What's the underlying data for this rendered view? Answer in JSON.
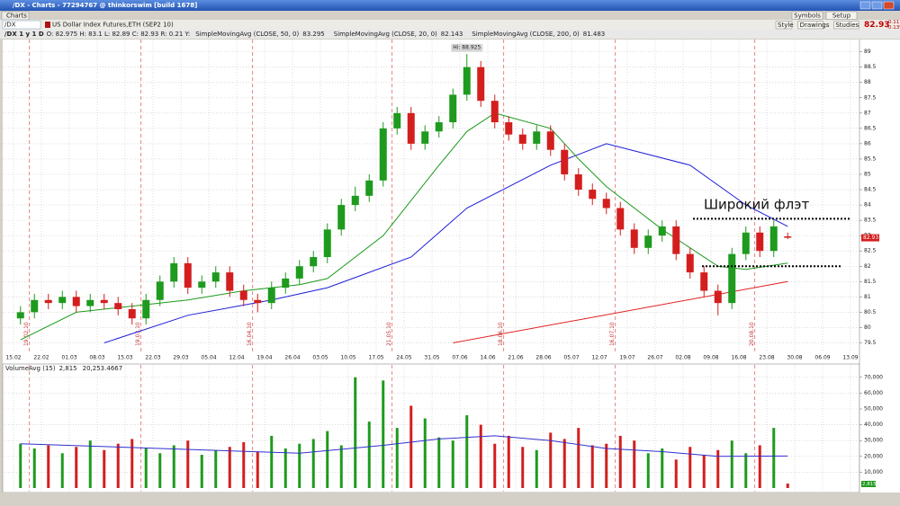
{
  "window": {
    "title": "/DX - Charts - 77294767 @ thinkorswim [build 1678]"
  },
  "tab": "Charts",
  "toolbar": {
    "symbol": "/DX",
    "description": "US Dollar Index Futures,ETH (SEP2 10)",
    "buttons": [
      "Symbols",
      "Setup"
    ],
    "tools": [
      "Style",
      "Drawings",
      "Studies"
    ],
    "last": "82.93",
    "change": "-0.11",
    "change_pct": "-0.13%"
  },
  "study_header": {
    "period": "/DX 1 y 1 D",
    "ohlc": "O: 82.975  H: 83.1  L: 82.89  C: 82.93  R: 0.21  Y:"
  },
  "chart_data": [
    {
      "type": "candlestick",
      "x_labels": [
        "15.02",
        "22.02",
        "01.03",
        "08.03",
        "15.03",
        "22.03",
        "29.03",
        "05.04",
        "12.04",
        "19.04",
        "26.04",
        "03.05",
        "10.05",
        "17.05",
        "24.05",
        "31.05",
        "07.06",
        "14.06",
        "21.06",
        "28.06",
        "05.07",
        "12.07",
        "19.07",
        "26.07",
        "02.08",
        "09.08",
        "16.08",
        "23.08",
        "30.08",
        "06.09",
        "13.09"
      ],
      "open": [
        80.3,
        80.5,
        80.9,
        80.8,
        81.0,
        80.7,
        80.9,
        80.8,
        80.6,
        80.3,
        80.9,
        81.5,
        82.1,
        81.3,
        81.5,
        81.8,
        81.2,
        80.9,
        80.8,
        81.3,
        81.6,
        82.0,
        82.3,
        83.2,
        84.0,
        84.3,
        84.8,
        86.5,
        87.0,
        86.0,
        86.4,
        86.7,
        87.6,
        88.5,
        87.4,
        86.7,
        86.3,
        86.0,
        86.4,
        85.8,
        85.0,
        84.5,
        84.2,
        83.9,
        83.2,
        82.6,
        83.0,
        83.3,
        82.4,
        81.8,
        81.2,
        80.8,
        82.4,
        83.1,
        82.5,
        82.975
      ],
      "high": [
        80.7,
        81.1,
        81.1,
        81.2,
        81.2,
        81.1,
        81.1,
        81.0,
        80.8,
        81.1,
        81.7,
        82.3,
        82.3,
        81.7,
        82.0,
        82.0,
        81.4,
        81.1,
        81.5,
        81.8,
        82.2,
        82.5,
        83.4,
        84.2,
        84.6,
        85.0,
        86.7,
        87.2,
        87.2,
        86.6,
        86.9,
        87.8,
        88.925,
        88.7,
        87.6,
        86.9,
        86.5,
        86.6,
        86.6,
        86.0,
        85.2,
        84.7,
        84.4,
        84.1,
        83.4,
        83.2,
        83.5,
        83.5,
        82.6,
        82.0,
        81.4,
        82.6,
        83.3,
        83.3,
        83.5,
        83.1
      ],
      "low": [
        80.1,
        80.3,
        80.6,
        80.6,
        80.5,
        80.5,
        80.6,
        80.4,
        80.1,
        80.1,
        80.7,
        81.3,
        81.1,
        81.1,
        81.3,
        81.0,
        80.7,
        80.5,
        80.6,
        81.1,
        81.4,
        81.8,
        82.1,
        83.0,
        83.8,
        84.1,
        84.6,
        86.3,
        85.8,
        85.8,
        86.2,
        86.5,
        87.4,
        87.2,
        86.5,
        86.1,
        85.8,
        85.8,
        85.6,
        84.8,
        84.3,
        84.0,
        83.7,
        83.0,
        82.4,
        82.4,
        82.8,
        82.2,
        81.6,
        81.0,
        80.4,
        80.6,
        82.2,
        82.3,
        82.3,
        82.89
      ],
      "close": [
        80.5,
        80.9,
        80.8,
        81.0,
        80.7,
        80.9,
        80.8,
        80.6,
        80.3,
        80.9,
        81.5,
        82.1,
        81.3,
        81.5,
        81.8,
        81.2,
        80.9,
        80.8,
        81.3,
        81.6,
        82.0,
        82.3,
        83.2,
        84.0,
        84.3,
        84.8,
        86.5,
        87.0,
        86.0,
        86.4,
        86.7,
        87.6,
        88.5,
        87.4,
        86.7,
        86.3,
        86.0,
        86.4,
        85.8,
        85.0,
        84.5,
        84.2,
        83.9,
        83.2,
        82.6,
        83.0,
        83.3,
        82.4,
        81.8,
        81.2,
        80.8,
        82.4,
        83.1,
        82.5,
        83.3,
        82.93
      ],
      "colors": {
        "up": "#1e9a1e",
        "down": "#d41e1e"
      },
      "series": [
        {
          "name": "SimpleMovingAvg (CLOSE, 50, 0)",
          "legend_value": 83.295,
          "color": "#1c1cd8",
          "x": [
            6,
            12,
            18,
            22,
            28,
            32,
            38,
            42,
            48,
            52,
            55
          ],
          "values": [
            79.5,
            80.4,
            80.9,
            81.3,
            82.3,
            83.9,
            85.3,
            86.0,
            85.3,
            84.0,
            83.3
          ]
        },
        {
          "name": "SimpleMovingAvg (CLOSE, 20, 0)",
          "legend_value": 82.143,
          "color": "#1a9a1a",
          "x": [
            0,
            4,
            8,
            12,
            16,
            20,
            22,
            26,
            30,
            32,
            34,
            38,
            40,
            42,
            46,
            48,
            50,
            52,
            55
          ],
          "values": [
            79.6,
            80.5,
            80.7,
            80.9,
            81.2,
            81.4,
            81.6,
            83.0,
            85.3,
            86.4,
            87.0,
            86.5,
            85.5,
            84.6,
            83.2,
            82.6,
            82.0,
            81.9,
            82.1
          ]
        },
        {
          "name": "SimpleMovingAvg (CLOSE, 200, 0)",
          "legend_value": 81.483,
          "color": "#e02020",
          "x": [
            31,
            55
          ],
          "values": [
            79.5,
            81.5
          ]
        }
      ],
      "high_label": "Hi: 88.925",
      "expirations": [
        "19.02.10",
        "19.03.10",
        "16.04.10",
        "21.05.10",
        "18.06.10",
        "16.07.10",
        "20.08.10"
      ],
      "annotation": "Широкий флэт",
      "levels": [
        83.55,
        82.0
      ],
      "ylim": [
        79.25,
        89.4
      ],
      "yticks": [
        79.5,
        80,
        80.5,
        81,
        81.5,
        82,
        82.5,
        83,
        83.5,
        84,
        84.5,
        85,
        85.5,
        86,
        86.5,
        87,
        87.5,
        88,
        88.5,
        89
      ],
      "grid": true
    },
    {
      "type": "bar",
      "title": "VolumeAvg (15)",
      "current_label": "2,815",
      "avg_label": "20,253.4667",
      "values": [
        28000,
        25000,
        27000,
        22000,
        26000,
        30000,
        24000,
        28000,
        31000,
        25000,
        22000,
        27000,
        30000,
        21000,
        24000,
        26000,
        29000,
        23000,
        33000,
        25000,
        28000,
        31000,
        36000,
        27000,
        70000,
        42000,
        68000,
        38000,
        52000,
        44000,
        32000,
        30000,
        46000,
        40000,
        28000,
        33000,
        26000,
        24000,
        35000,
        31000,
        38000,
        27000,
        28000,
        33000,
        30000,
        22000,
        25000,
        18000,
        26000,
        21000,
        24000,
        30000,
        22000,
        27000,
        38000,
        2815
      ],
      "avg": {
        "color": "#3030d0",
        "x": [
          0,
          10,
          20,
          26,
          30,
          34,
          38,
          42,
          46,
          50,
          55
        ],
        "values": [
          28000,
          25000,
          22000,
          27000,
          31000,
          33000,
          30000,
          25000,
          23000,
          20000,
          20253
        ]
      },
      "ylim": [
        0,
        75000
      ],
      "yticks": [
        {
          "value": 10000,
          "label": "10,000"
        },
        {
          "value": 20000,
          "label": "20,000"
        },
        {
          "value": 30000,
          "label": "30,000"
        },
        {
          "value": 40000,
          "label": "40,000"
        },
        {
          "value": 50000,
          "label": "50,000"
        },
        {
          "value": 60000,
          "label": "60,000"
        },
        {
          "value": 70000,
          "label": "70,000"
        }
      ],
      "grid": true
    }
  ]
}
